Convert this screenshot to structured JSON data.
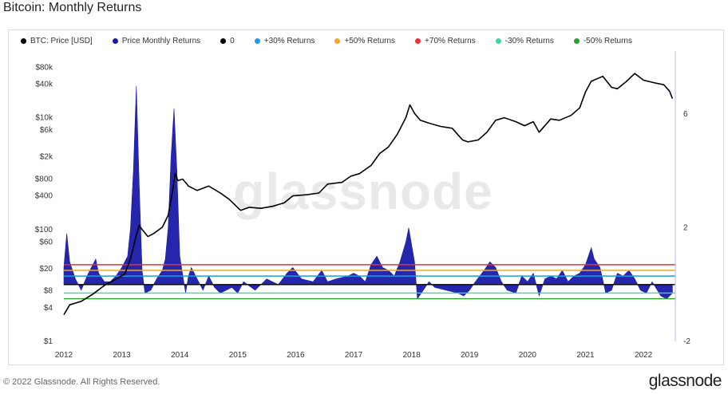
{
  "header": {
    "title": "Bitcoin: Monthly Returns"
  },
  "footer": {
    "copyright": "© 2022 Glassnode. All Rights Reserved.",
    "brand": "glassnode"
  },
  "watermark": "glassnode",
  "chart_data": {
    "type": "line",
    "title": "Bitcoin: Monthly Returns",
    "legend_placement": "top-left",
    "legend": [
      {
        "name": "BTC: Price [USD]",
        "color": "#000000"
      },
      {
        "name": "Price Monthly Returns",
        "color": "#1a1aa8"
      },
      {
        "name": "0",
        "color": "#000000"
      },
      {
        "name": "+30% Returns",
        "color": "#1e9be6"
      },
      {
        "name": "+50% Returns",
        "color": "#f5a623"
      },
      {
        "name": "+70% Returns",
        "color": "#e8313a"
      },
      {
        "name": "-30% Returns",
        "color": "#37d9a6"
      },
      {
        "name": "-50% Returns",
        "color": "#2aa02a"
      }
    ],
    "x_axis": {
      "type": "time",
      "range": [
        2012.0,
        2022.55
      ],
      "tick_labels": [
        "2012",
        "2013",
        "2014",
        "2015",
        "2016",
        "2017",
        "2018",
        "2019",
        "2020",
        "2021",
        "2022"
      ]
    },
    "y_left": {
      "label": "",
      "scale": "log",
      "range": [
        1,
        120000
      ],
      "tick_labels": [
        "$80k",
        "$40k",
        "$10k",
        "$6k",
        "$2k",
        "$800",
        "$400",
        "$100",
        "$60",
        "$20",
        "$8",
        "$4",
        "$1"
      ],
      "tick_values": [
        80000,
        40000,
        10000,
        6000,
        2000,
        800,
        400,
        100,
        60,
        20,
        8,
        4,
        1
      ]
    },
    "y_right": {
      "label": "",
      "range": [
        -2,
        8
      ],
      "tick_labels": [
        "6",
        "2",
        "-2"
      ],
      "tick_values": [
        6,
        2,
        -2
      ]
    },
    "reference_lines": [
      {
        "name": "0",
        "value": 0,
        "color": "#000000"
      },
      {
        "name": "+30% Returns",
        "value": 0.3,
        "color": "#1e9be6"
      },
      {
        "name": "+50% Returns",
        "value": 0.5,
        "color": "#f5a623"
      },
      {
        "name": "+70% Returns",
        "value": 0.7,
        "color": "#e8313a"
      },
      {
        "name": "-30% Returns",
        "value": -0.3,
        "color": "#37d9a6"
      },
      {
        "name": "-50% Returns",
        "value": -0.5,
        "color": "#2aa02a"
      }
    ],
    "series": [
      {
        "name": "BTC: Price [USD]",
        "axis": "left",
        "color": "#000000",
        "x": [
          2012.0,
          2012.1,
          2012.3,
          2012.5,
          2012.7,
          2012.9,
          2013.05,
          2013.15,
          2013.25,
          2013.3,
          2013.35,
          2013.45,
          2013.55,
          2013.7,
          2013.8,
          2013.87,
          2013.92,
          2013.97,
          2014.05,
          2014.15,
          2014.3,
          2014.5,
          2014.7,
          2014.85,
          2015.05,
          2015.2,
          2015.4,
          2015.6,
          2015.8,
          2015.95,
          2016.2,
          2016.4,
          2016.55,
          2016.8,
          2016.95,
          2017.1,
          2017.3,
          2017.45,
          2017.6,
          2017.75,
          2017.9,
          2017.97,
          2018.05,
          2018.15,
          2018.3,
          2018.5,
          2018.7,
          2018.88,
          2018.97,
          2019.15,
          2019.3,
          2019.45,
          2019.6,
          2019.8,
          2019.95,
          2020.1,
          2020.2,
          2020.4,
          2020.55,
          2020.75,
          2020.9,
          2021.0,
          2021.1,
          2021.3,
          2021.45,
          2021.55,
          2021.7,
          2021.85,
          2022.0,
          2022.2,
          2022.35,
          2022.45,
          2022.5
        ],
        "y": [
          3,
          4.5,
          5.2,
          7,
          10,
          13,
          16,
          30,
          80,
          120,
          100,
          75,
          85,
          110,
          180,
          450,
          1000,
          750,
          800,
          600,
          500,
          600,
          450,
          350,
          220,
          250,
          240,
          260,
          300,
          400,
          420,
          450,
          650,
          700,
          900,
          1000,
          1400,
          2300,
          3000,
          5000,
          10000,
          17000,
          12000,
          9000,
          8000,
          7000,
          6500,
          4000,
          3700,
          4000,
          5500,
          9000,
          10000,
          8500,
          7200,
          8500,
          5500,
          9500,
          9000,
          11000,
          15000,
          29000,
          45000,
          55000,
          35000,
          33000,
          44000,
          62000,
          47000,
          42000,
          39000,
          30000,
          22000
        ]
      },
      {
        "name": "Price Monthly Returns",
        "axis": "right",
        "color": "#1a1aa8",
        "x": [
          2012.0,
          2012.05,
          2012.1,
          2012.2,
          2012.3,
          2012.4,
          2012.5,
          2012.55,
          2012.6,
          2012.7,
          2012.8,
          2012.9,
          2013.0,
          2013.1,
          2013.15,
          2013.2,
          2013.25,
          2013.3,
          2013.35,
          2013.4,
          2013.5,
          2013.6,
          2013.7,
          2013.75,
          2013.8,
          2013.85,
          2013.9,
          2013.95,
          2014.0,
          2014.1,
          2014.15,
          2014.2,
          2014.3,
          2014.4,
          2014.5,
          2014.6,
          2014.7,
          2014.8,
          2014.9,
          2015.0,
          2015.1,
          2015.3,
          2015.5,
          2015.7,
          2015.85,
          2015.95,
          2016.1,
          2016.3,
          2016.45,
          2016.55,
          2016.7,
          2016.9,
          2017.0,
          2017.1,
          2017.2,
          2017.3,
          2017.4,
          2017.5,
          2017.6,
          2017.7,
          2017.8,
          2017.9,
          2017.95,
          2018.05,
          2018.1,
          2018.2,
          2018.3,
          2018.4,
          2018.6,
          2018.8,
          2018.9,
          2019.0,
          2019.1,
          2019.25,
          2019.35,
          2019.45,
          2019.55,
          2019.65,
          2019.8,
          2019.9,
          2020.0,
          2020.1,
          2020.2,
          2020.3,
          2020.4,
          2020.5,
          2020.6,
          2020.7,
          2020.8,
          2020.9,
          2021.0,
          2021.05,
          2021.1,
          2021.15,
          2021.25,
          2021.35,
          2021.45,
          2021.55,
          2021.65,
          2021.75,
          2021.85,
          2021.95,
          2022.05,
          2022.15,
          2022.3,
          2022.4,
          2022.5
        ],
        "y": [
          0.6,
          1.8,
          0.8,
          0.2,
          -0.2,
          0.3,
          0.7,
          0.9,
          0.4,
          0.1,
          0.1,
          0.3,
          0.6,
          1.0,
          2.0,
          4.0,
          7.0,
          3.5,
          0.5,
          -0.3,
          -0.2,
          0.2,
          0.5,
          0.9,
          2.0,
          4.5,
          6.2,
          4.0,
          1.0,
          -0.3,
          0.3,
          0.6,
          0.2,
          -0.2,
          0.3,
          -0.1,
          -0.3,
          -0.2,
          -0.1,
          -0.3,
          0.1,
          -0.2,
          0.2,
          0.0,
          0.4,
          0.6,
          0.2,
          0.1,
          0.5,
          0.1,
          0.2,
          0.3,
          0.4,
          0.3,
          0.1,
          0.7,
          1.0,
          0.6,
          0.5,
          0.3,
          0.8,
          1.5,
          2.0,
          0.8,
          -0.5,
          -0.2,
          0.1,
          -0.1,
          -0.2,
          -0.3,
          -0.4,
          -0.2,
          0.1,
          0.5,
          0.8,
          0.6,
          0.1,
          -0.2,
          -0.3,
          0.3,
          0.1,
          0.4,
          -0.4,
          0.2,
          0.3,
          0.2,
          0.5,
          0.1,
          0.3,
          0.4,
          0.7,
          1.0,
          1.3,
          0.9,
          0.6,
          -0.3,
          -0.2,
          0.4,
          0.3,
          0.5,
          0.2,
          -0.2,
          -0.3,
          0.1,
          -0.4,
          -0.5,
          -0.3
        ]
      }
    ]
  }
}
